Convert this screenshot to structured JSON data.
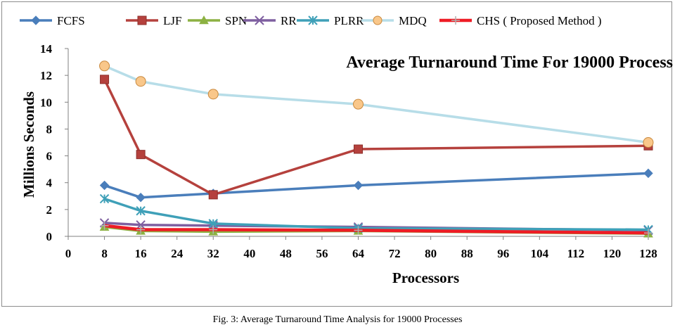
{
  "chart_data": {
    "type": "line",
    "title": "Average Turnaround Time For 19000 Process",
    "xlabel": "Processors",
    "ylabel": "Millions  Seconds",
    "xlim": [
      0,
      128
    ],
    "ylim": [
      0,
      14
    ],
    "x_ticks": [
      0,
      8,
      16,
      24,
      32,
      40,
      48,
      56,
      64,
      72,
      80,
      88,
      96,
      104,
      112,
      120,
      128
    ],
    "y_ticks": [
      0,
      2,
      4,
      6,
      8,
      10,
      12,
      14
    ],
    "legend_position": "top",
    "x": [
      8,
      16,
      32,
      64,
      128
    ],
    "series": [
      {
        "name": "FCFS",
        "color": "#4a7ebb",
        "marker": "diamond",
        "values": [
          3.8,
          2.9,
          3.2,
          3.8,
          4.7
        ]
      },
      {
        "name": "LJF",
        "color": "#b5413d",
        "marker": "square",
        "values": [
          11.7,
          6.1,
          3.1,
          6.5,
          6.75
        ]
      },
      {
        "name": "SPN",
        "color": "#8cb142",
        "marker": "triangle",
        "values": [
          0.7,
          0.4,
          0.35,
          0.4,
          0.2
        ]
      },
      {
        "name": "RR",
        "color": "#7e5fa0",
        "marker": "x",
        "values": [
          1.0,
          0.85,
          0.8,
          0.7,
          0.45
        ]
      },
      {
        "name": "PLRR",
        "color": "#3fa0b8",
        "marker": "asterisk",
        "values": [
          2.8,
          1.9,
          0.95,
          0.6,
          0.5
        ]
      },
      {
        "name": "MDQ",
        "color": "#b7dde8",
        "marker": "circle",
        "values": [
          12.7,
          11.55,
          10.6,
          9.85,
          7.0
        ]
      },
      {
        "name": "CHS ( Proposed Method )",
        "color": "#ee1c25",
        "marker": "plus",
        "values": [
          0.8,
          0.5,
          0.5,
          0.45,
          0.25
        ]
      }
    ]
  },
  "caption": "Fig. 3: Average Turnaround Time Analysis for 19000 Processes"
}
